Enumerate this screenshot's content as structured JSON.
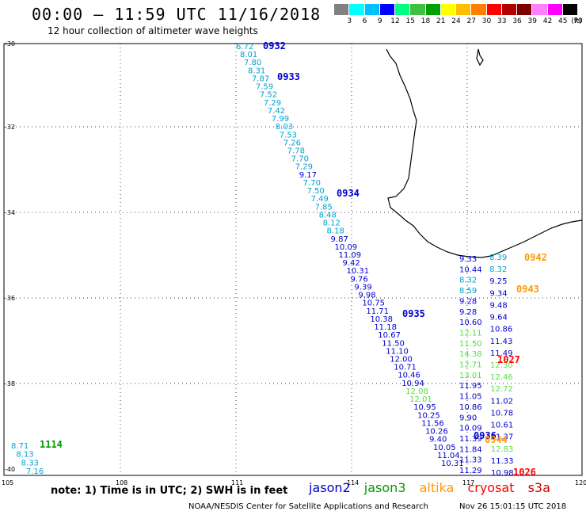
{
  "header": {
    "title": "00:00 — 11:59 UTC 11/16/2018",
    "subtitle": "12 hour collection of altimeter wave heights"
  },
  "legend": {
    "colors": [
      "#808080",
      "#00ffff",
      "#00bfff",
      "#0000ff",
      "#00ff80",
      "#40c040",
      "#00a000",
      "#ffff00",
      "#ffbf00",
      "#ff8000",
      "#ff0000",
      "#b00000",
      "#800000",
      "#ff80ff",
      "#ff00ff",
      "#000000"
    ],
    "labels": [
      "3",
      "6",
      "9",
      "12",
      "15",
      "18",
      "21",
      "24",
      "27",
      "30",
      "33",
      "36",
      "39",
      "42",
      "45",
      "70",
      "(ft)"
    ]
  },
  "axes": {
    "lon_ticks": [
      "105",
      "108",
      "111",
      "114",
      "117",
      "120"
    ],
    "lat_ticks": [
      "-30",
      "-32",
      "-34",
      "-36",
      "-38",
      "-40"
    ]
  },
  "colors": {
    "jason2": "#0000cc",
    "jason3": "#009900",
    "altika": "#ff9900",
    "cryosat": "#ff0000",
    "s3a": "#cc0000",
    "cyan": "#00a0d0",
    "lightgreen": "#55dd44",
    "orange": "#ff9900"
  },
  "tracks": {
    "main": {
      "values": [
        "6.72",
        "8.01",
        "7.80",
        "8.31",
        "7.87",
        "7.59",
        "7.52",
        "7.29",
        "7.42",
        "7.99",
        "8.03",
        "7.53",
        "7.26",
        "7.78",
        "7.70",
        "7.29",
        "9.17",
        "7.70",
        "7.50",
        "7.49",
        "7.85",
        "8.48",
        "8.12",
        "8.18",
        "9.87",
        "10.09",
        "11.09",
        "9.42",
        "10.31",
        "9.76",
        "9.39",
        "9.98",
        "10.75",
        "11.71",
        "10.38",
        "11.18",
        "10.67",
        "11.50",
        "11.10",
        "12.00",
        "10.71",
        "10.46",
        "10.94",
        "12.08",
        "12.01",
        "10.95",
        "10.25",
        "11.56",
        "10.26",
        "9.40",
        "10.05",
        "11.04",
        "10.31"
      ],
      "colors": [
        "c",
        "c",
        "c",
        "c",
        "c",
        "c",
        "c",
        "c",
        "c",
        "c",
        "c",
        "c",
        "c",
        "c",
        "c",
        "c",
        "b",
        "c",
        "c",
        "c",
        "c",
        "c",
        "c",
        "c",
        "b",
        "b",
        "b",
        "b",
        "b",
        "b",
        "b",
        "b",
        "b",
        "b",
        "b",
        "b",
        "b",
        "b",
        "b",
        "b",
        "b",
        "b",
        "b",
        "g",
        "g",
        "b",
        "b",
        "b",
        "b",
        "b",
        "b",
        "b",
        "b"
      ]
    },
    "east": {
      "values": [
        "9.33",
        "10.44",
        "8.32",
        "8.59",
        "9.28",
        "9.28",
        "10.60",
        "12.11",
        "11.50",
        "14.38",
        "12.71",
        "13.01",
        "11.95",
        "11.05",
        "10.86",
        "9.90",
        "10.09",
        "11.39",
        "11.84",
        "11.33",
        "11.29"
      ],
      "colors": [
        "b",
        "b",
        "c",
        "c",
        "b",
        "b",
        "b",
        "g",
        "g",
        "g",
        "g",
        "g",
        "b",
        "b",
        "b",
        "b",
        "b",
        "b",
        "b",
        "b",
        "b"
      ]
    },
    "east2": {
      "values": [
        "8.39",
        "8.32",
        "9.25",
        "9.34",
        "9.48",
        "9.64",
        "10.86",
        "11.43",
        "11.49",
        "12.30",
        "12.46",
        "12.72",
        "11.02",
        "10.78",
        "10.61",
        "11.37",
        "12.83",
        "11.33",
        "10.98"
      ],
      "colors": [
        "c",
        "c",
        "b",
        "b",
        "b",
        "b",
        "b",
        "b",
        "b",
        "g",
        "g",
        "g",
        "b",
        "b",
        "b",
        "b",
        "g",
        "b",
        "b"
      ]
    },
    "west": {
      "values": [
        "8.71",
        "8.13",
        "8.33",
        "7.16"
      ],
      "colors": [
        "c",
        "c",
        "c",
        "c"
      ]
    }
  },
  "pass_labels": [
    {
      "text": "0932",
      "color": "#0000cc"
    },
    {
      "text": "0933",
      "color": "#0000cc"
    },
    {
      "text": "0934",
      "color": "#0000cc"
    },
    {
      "text": "0935",
      "color": "#0000cc"
    },
    {
      "text": "0936",
      "color": "#0000cc"
    },
    {
      "text": "0942",
      "color": "#ff9900"
    },
    {
      "text": "0943",
      "color": "#ff9900"
    },
    {
      "text": "0944",
      "color": "#ff9900"
    },
    {
      "text": "1027",
      "color": "#ff0000"
    },
    {
      "text": "1026",
      "color": "#ff0000"
    },
    {
      "text": "1114",
      "color": "#009900"
    }
  ],
  "footer": {
    "note": "note: 1) Time is in UTC; 2) SWH is in feet",
    "sats": [
      "jason2",
      "jason3",
      "altika",
      "cryosat",
      "s3a"
    ],
    "credit": "NOAA/NESDIS Center for Satellite Applications and Research",
    "stamp": "Nov 26 15:01:15 UTC 2018"
  }
}
